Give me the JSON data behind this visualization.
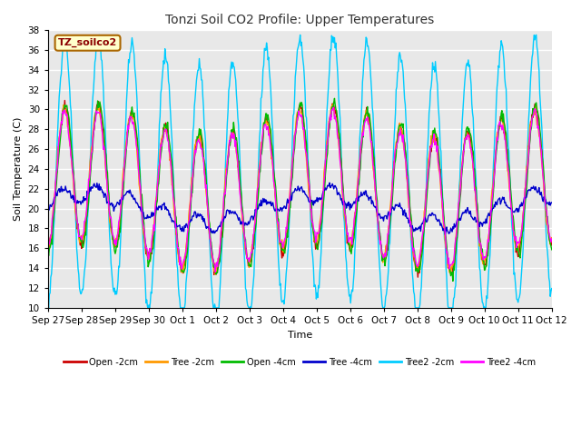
{
  "title": "Tonzi Soil CO2 Profile: Upper Temperatures",
  "xlabel": "Time",
  "ylabel": "Soil Temperature (C)",
  "ylim": [
    10,
    38
  ],
  "annotation": "TZ_soilco2",
  "legend_labels": [
    "Open -2cm",
    "Tree -2cm",
    "Open -4cm",
    "Tree -4cm",
    "Tree2 -2cm",
    "Tree2 -4cm"
  ],
  "line_colors": [
    "#cc0000",
    "#ff9900",
    "#00bb00",
    "#0000cc",
    "#00ccff",
    "#ff00ff"
  ],
  "background_color": "#ffffff",
  "plot_bg_color": "#e8e8e8",
  "tick_labels": [
    "Sep 27",
    "Sep 28",
    "Sep 29",
    "Sep 30",
    "Oct 1",
    "Oct 2",
    "Oct 3",
    "Oct 4",
    "Oct 5",
    "Oct 6",
    "Oct 7",
    "Oct 8",
    "Oct 9",
    "Oct 10",
    "Oct 11",
    "Oct 12"
  ],
  "n_points": 720,
  "figsize": [
    6.4,
    4.8
  ],
  "dpi": 100
}
